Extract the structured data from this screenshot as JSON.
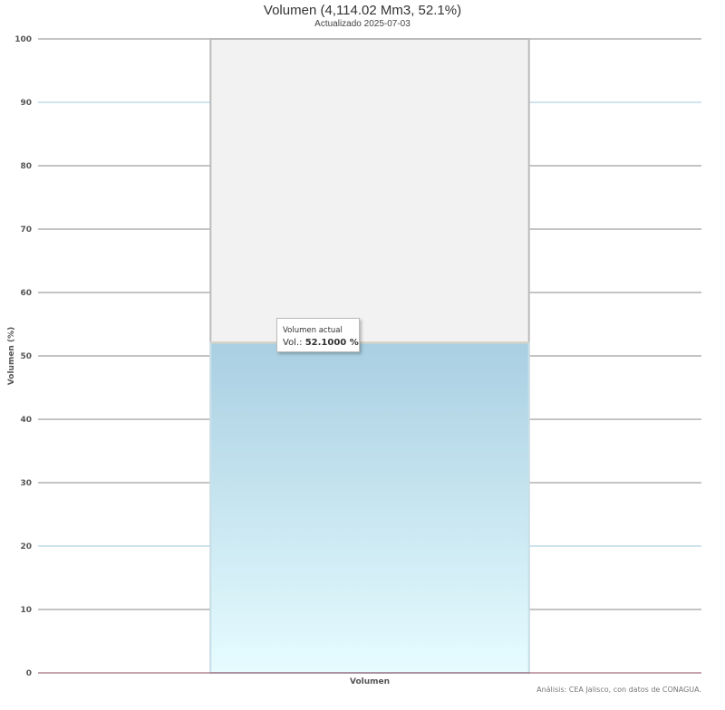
{
  "chart_data": {
    "type": "bar",
    "title": "Volumen (4,114.02 Mm3, 52.1%)",
    "subtitle": "Actualizado 2025-07-03",
    "categories": [
      "Volumen"
    ],
    "values": [
      52.1
    ],
    "capacity_background": 100,
    "ylabel": "Volumen (%)",
    "xlabel": "",
    "ylim": [
      0,
      100
    ],
    "yticks": [
      0,
      10,
      20,
      30,
      40,
      50,
      60,
      70,
      80,
      90,
      100
    ],
    "grid": true,
    "tooltip": {
      "series": "Volumen actual",
      "label": "Vol.:",
      "value": "52.1000 %"
    },
    "colors": {
      "fill_top": "#a9cfe2",
      "fill_bottom": "#e6fcff",
      "background_bar": "#f2f2f2",
      "axis": "#8b4a5a"
    }
  },
  "credits": "Análisis: CEA Jalisco, con datos de CONAGUA."
}
